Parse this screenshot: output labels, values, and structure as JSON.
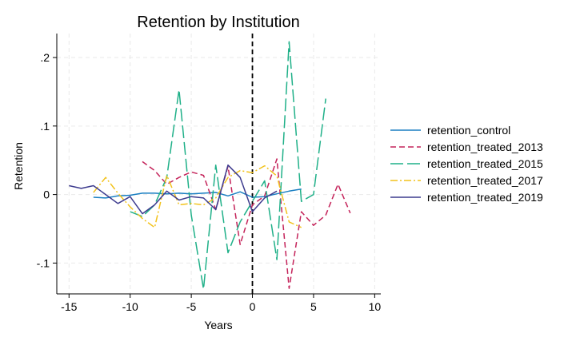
{
  "chart_data": {
    "type": "line",
    "title": "Retention by Institution",
    "xlabel": "Years",
    "ylabel": "Retention",
    "xlim": [
      -16,
      10.5
    ],
    "ylim": [
      -0.145,
      0.235
    ],
    "xticks": [
      -15,
      -10,
      -5,
      0,
      5,
      10
    ],
    "xtick_labels": [
      "-15",
      "-10",
      "-5",
      "0",
      "5",
      "10"
    ],
    "yticks": [
      -0.1,
      0,
      0.1,
      0.2
    ],
    "ytick_labels": [
      "-.1",
      "0",
      ".1",
      ".2"
    ],
    "grid": true,
    "legend_position": "right",
    "reference_line": {
      "x": 0,
      "style": "dashed",
      "color": "#000000"
    },
    "series": [
      {
        "name": "retention_control",
        "color": "#1a7fc2",
        "dash": "",
        "x": [
          -13,
          -12,
          -11,
          -10,
          -9,
          -8,
          -7,
          -6,
          -5,
          -4,
          -3,
          -2,
          -1,
          0,
          1,
          2,
          3,
          4
        ],
        "y": [
          -0.004,
          -0.005,
          -0.002,
          -0.001,
          0.002,
          0.002,
          0.001,
          0.002,
          0.001,
          0.002,
          0.003,
          -0.002,
          0.004,
          -0.004,
          -0.003,
          0.001,
          0.005,
          0.008
        ]
      },
      {
        "name": "retention_treated_2013",
        "color": "#c4235a",
        "dash": "7,4",
        "x": [
          -9,
          -8,
          -7,
          -6,
          -5,
          -4,
          -3,
          -2,
          -1,
          0,
          1,
          2,
          3,
          4,
          5,
          6,
          7,
          8
        ],
        "y": [
          0.048,
          0.035,
          0.015,
          0.025,
          0.033,
          0.028,
          -0.022,
          0.041,
          -0.073,
          -0.015,
          -0.002,
          0.052,
          -0.137,
          -0.025,
          -0.045,
          -0.03,
          0.015,
          -0.027
        ]
      },
      {
        "name": "retention_treated_2015",
        "color": "#1fb088",
        "dash": "16,5",
        "x": [
          -10,
          -9,
          -8,
          -7,
          -6,
          -5,
          -4,
          -3,
          -2,
          -1,
          0,
          1,
          2,
          3,
          4,
          5,
          6
        ],
        "y": [
          -0.025,
          -0.032,
          -0.015,
          0.025,
          0.153,
          -0.03,
          -0.138,
          0.043,
          -0.085,
          -0.04,
          -0.01,
          0.02,
          -0.095,
          0.223,
          -0.01,
          0.0,
          0.14
        ]
      },
      {
        "name": "retention_treated_2017",
        "color": "#f2c21b",
        "dash": "9,3,2,3",
        "x": [
          -13,
          -12,
          -11,
          -10,
          -9,
          -8,
          -7,
          -6,
          -5,
          -4,
          -3,
          -2,
          -1,
          0,
          1,
          2,
          3,
          4
        ],
        "y": [
          0.003,
          0.025,
          0.002,
          -0.018,
          -0.035,
          -0.048,
          0.028,
          -0.015,
          -0.013,
          -0.015,
          -0.005,
          0.025,
          0.035,
          0.032,
          0.042,
          0.027,
          -0.04,
          -0.048
        ]
      },
      {
        "name": "retention_treated_2019",
        "color": "#3d3b8e",
        "dash": "",
        "x": [
          -15,
          -14,
          -13,
          -12,
          -11,
          -10,
          -9,
          -8,
          -7,
          -6,
          -5,
          -4,
          -3,
          -2,
          -1,
          0,
          1,
          2
        ],
        "y": [
          0.013,
          0.009,
          0.013,
          0.0,
          -0.013,
          -0.003,
          -0.028,
          -0.015,
          0.005,
          -0.008,
          -0.003,
          -0.005,
          -0.022,
          0.043,
          0.025,
          -0.025,
          -0.005,
          0.005
        ]
      }
    ]
  }
}
